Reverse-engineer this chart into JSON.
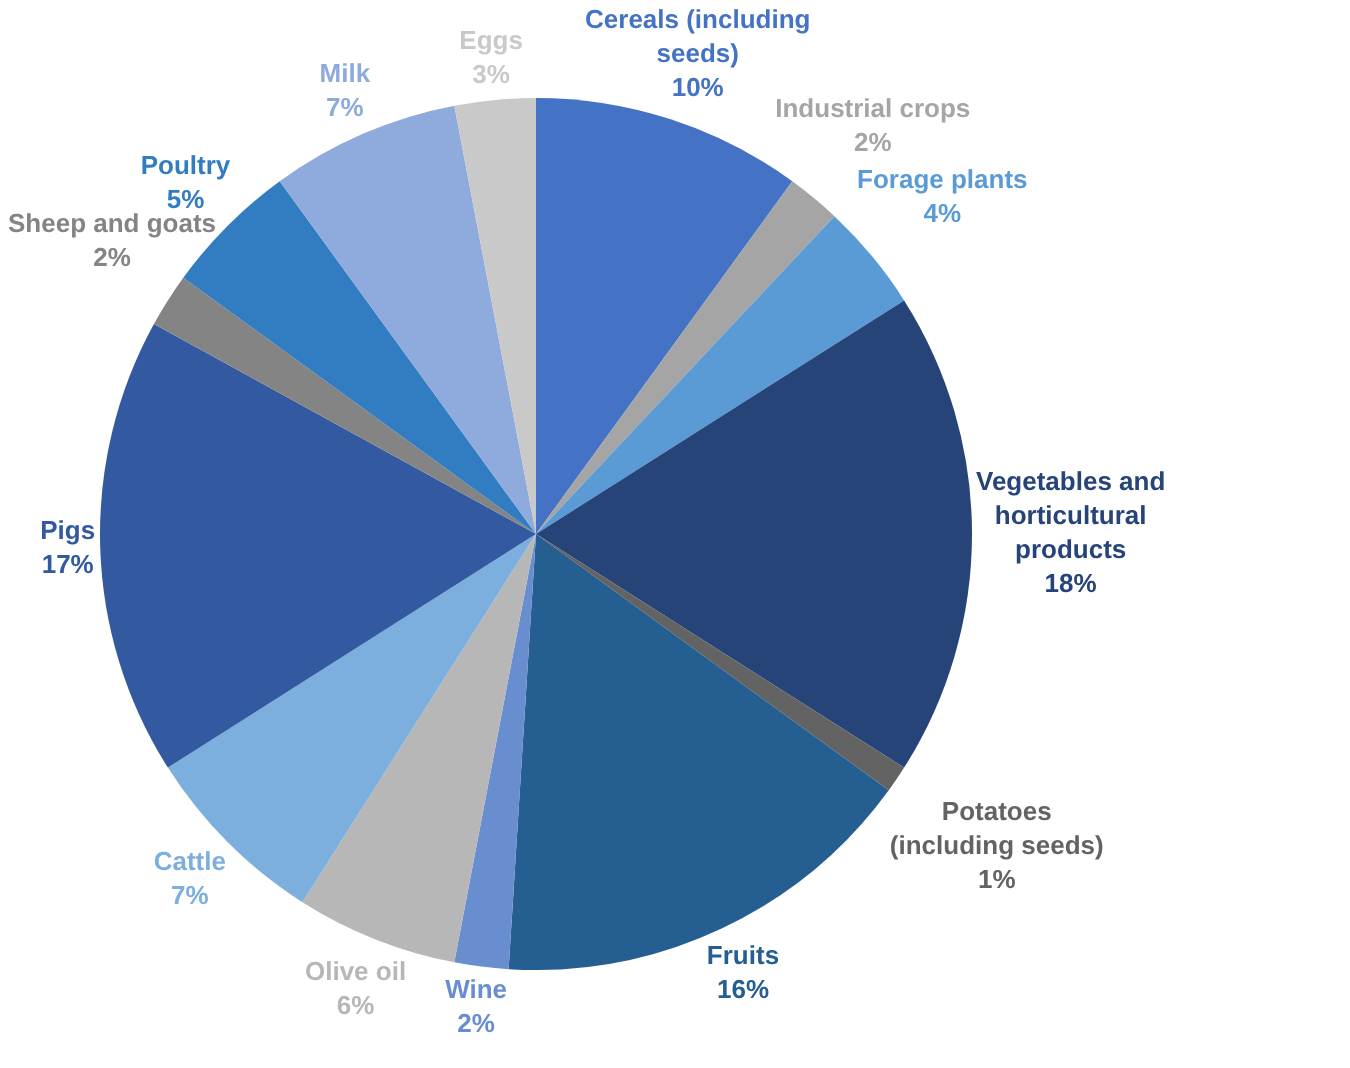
{
  "chart_data": {
    "type": "pie",
    "categories": [
      "Cereals (including seeds)",
      "Industrial crops",
      "Forage plants",
      "Vegetables and horticultural products",
      "Potatoes (including seeds)",
      "Fruits",
      "Wine",
      "Olive oil",
      "Cattle",
      "Pigs",
      "Sheep and goats",
      "Poultry",
      "Milk",
      "Eggs"
    ],
    "values": [
      10,
      2,
      4,
      18,
      1,
      16,
      2,
      6,
      7,
      17,
      2,
      5,
      7,
      3
    ],
    "value_labels": [
      "10%",
      "2%",
      "4%",
      "18%",
      "1%",
      "16%",
      "2%",
      "6%",
      "7%",
      "17%",
      "2%",
      "5%",
      "7%",
      "3%"
    ],
    "colors": [
      "#4472c4",
      "#a5a5a5",
      "#5b9bd5",
      "#264478",
      "#636363",
      "#255e91",
      "#698ed0",
      "#b7b7b7",
      "#7cafdd",
      "#335aa1",
      "#848484",
      "#327dc2",
      "#8faadc",
      "#c9c9c9"
    ],
    "legend": false
  }
}
